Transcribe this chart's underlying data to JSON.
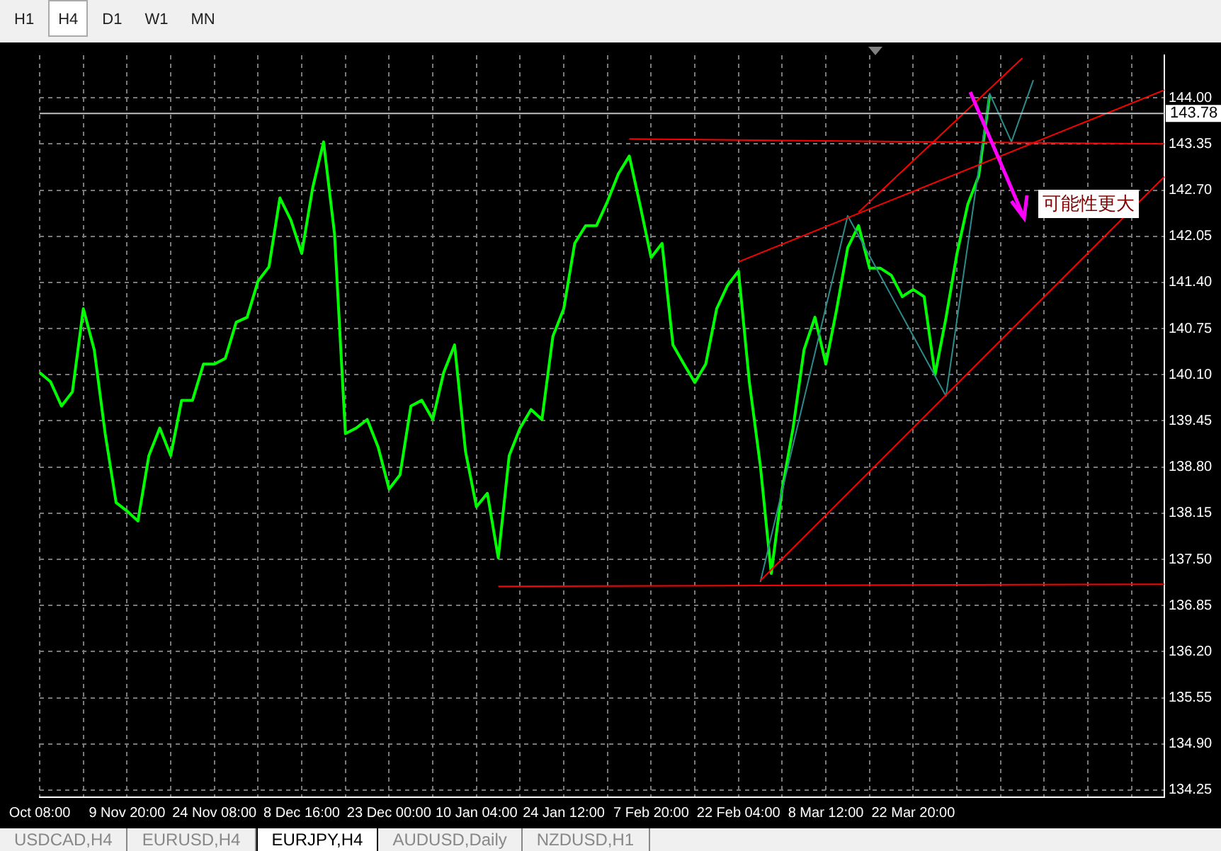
{
  "chart_data": {
    "type": "line",
    "categories": [
      "Oct 08:00",
      null,
      null,
      null,
      null,
      null,
      null,
      null,
      "9 Nov 20:00",
      null,
      null,
      null,
      null,
      null,
      null,
      null,
      "24 Nov 08:00",
      null,
      null,
      null,
      null,
      null,
      null,
      null,
      "8 Dec 16:00",
      null,
      null,
      null,
      null,
      null,
      null,
      null,
      "23 Dec 00:00",
      null,
      null,
      null,
      null,
      null,
      null,
      null,
      "10 Jan 04:00",
      null,
      null,
      null,
      null,
      null,
      null,
      null,
      "24 Jan 12:00",
      null,
      null,
      null,
      null,
      null,
      null,
      null,
      "7 Feb 20:00",
      null,
      null,
      null,
      null,
      null,
      null,
      null,
      "22 Feb 04:00",
      null,
      null,
      null,
      null,
      null,
      null,
      null,
      "8 Mar 12:00",
      null,
      null,
      null,
      null,
      null,
      null,
      null,
      "22 Mar 20:00",
      null,
      null,
      null,
      null,
      null,
      null,
      null,
      null,
      null,
      null,
      null,
      null,
      null,
      null,
      null,
      null,
      null,
      null,
      null,
      null,
      null,
      null,
      null
    ],
    "series": [
      {
        "color": "#00ff00",
        "values": [
          140.13,
          140.0,
          139.66,
          139.86,
          141.03,
          140.45,
          139.27,
          138.3,
          138.18,
          138.04,
          138.96,
          139.35,
          138.96,
          139.74,
          139.74,
          140.25,
          140.25,
          140.33,
          140.84,
          140.91,
          141.42,
          141.62,
          142.59,
          142.28,
          141.81,
          142.73,
          143.38,
          142.09,
          139.27,
          139.35,
          139.47,
          139.08,
          138.49,
          138.69,
          139.66,
          139.74,
          139.47,
          140.13,
          140.52,
          139.02,
          138.24,
          138.43,
          137.52,
          138.96,
          139.35,
          139.61,
          139.47,
          140.64,
          141.03,
          141.95,
          142.2,
          142.2,
          142.54,
          142.93,
          143.18,
          142.48,
          141.75,
          141.95,
          140.52,
          140.25,
          139.99,
          140.25,
          141.03,
          141.36,
          141.56,
          139.99,
          138.82,
          137.3,
          138.49,
          139.35,
          140.45,
          140.91,
          140.25,
          141.03,
          141.89,
          142.2,
          141.6,
          141.6,
          141.5,
          141.2,
          141.3,
          141.2,
          140.1,
          140.9,
          141.8,
          142.5,
          142.9,
          144.04,
          null,
          null,
          null,
          null,
          null,
          null,
          null,
          null,
          null,
          null,
          null,
          null,
          null,
          null,
          null,
          null
        ]
      },
      {
        "color": "#ff0000",
        "values": [
          null,
          null,
          null,
          null,
          null,
          null,
          null,
          null,
          null,
          null,
          null,
          null,
          null,
          null,
          null,
          null,
          null,
          null,
          null,
          null,
          null,
          null,
          null,
          null,
          null,
          null,
          null,
          null,
          null,
          null,
          null,
          null,
          null,
          null,
          null,
          null,
          null,
          null,
          null,
          null,
          null,
          null,
          null,
          null,
          null,
          null,
          null,
          null,
          null,
          null,
          null,
          null,
          null,
          null,
          143.42,
          null,
          null,
          null,
          null,
          null,
          null,
          null,
          null,
          null,
          null,
          null,
          null,
          null,
          null,
          null,
          null,
          null,
          null,
          null,
          null,
          null,
          null,
          null,
          null,
          null,
          null,
          null,
          null,
          null,
          null,
          null,
          null,
          null,
          null,
          null,
          null,
          null,
          null,
          null,
          null,
          null,
          null,
          null,
          null,
          null,
          null,
          null,
          null,
          143.35
        ]
      },
      {
        "color": "#ff0000",
        "values": [
          null,
          null,
          null,
          null,
          null,
          null,
          null,
          null,
          null,
          null,
          null,
          null,
          null,
          null,
          null,
          null,
          null,
          null,
          null,
          null,
          null,
          null,
          null,
          null,
          null,
          null,
          null,
          null,
          null,
          null,
          null,
          null,
          null,
          null,
          null,
          null,
          null,
          null,
          null,
          null,
          null,
          null,
          137.12,
          null,
          null,
          null,
          null,
          null,
          null,
          null,
          null,
          null,
          null,
          null,
          null,
          null,
          null,
          null,
          null,
          null,
          null,
          null,
          null,
          null,
          null,
          null,
          null,
          null,
          null,
          null,
          null,
          null,
          null,
          null,
          null,
          null,
          null,
          null,
          null,
          null,
          null,
          null,
          null,
          null,
          null,
          null,
          null,
          null,
          null,
          null,
          null,
          null,
          null,
          null,
          null,
          null,
          null,
          null,
          null,
          null,
          null,
          null,
          null,
          137.15
        ]
      },
      {
        "color": "#ff0000",
        "values": [
          null,
          null,
          null,
          null,
          null,
          null,
          null,
          null,
          null,
          null,
          null,
          null,
          null,
          null,
          null,
          null,
          null,
          null,
          null,
          null,
          null,
          null,
          null,
          null,
          null,
          null,
          null,
          null,
          null,
          null,
          null,
          null,
          null,
          null,
          null,
          null,
          null,
          null,
          null,
          null,
          null,
          null,
          null,
          null,
          null,
          null,
          null,
          null,
          null,
          null,
          null,
          null,
          null,
          null,
          null,
          null,
          null,
          null,
          null,
          null,
          null,
          null,
          null,
          null,
          null,
          null,
          137.2,
          null,
          null,
          null,
          null,
          null,
          null,
          null,
          null,
          null,
          null,
          null,
          null,
          null,
          null,
          null,
          null,
          null,
          null,
          null,
          null,
          null,
          null,
          null,
          null,
          null,
          null,
          null,
          null,
          null,
          null,
          null,
          null,
          null,
          null,
          null,
          null,
          142.89
        ]
      },
      {
        "color": "#ff0000",
        "values": [
          null,
          null,
          null,
          null,
          null,
          null,
          null,
          null,
          null,
          null,
          null,
          null,
          null,
          null,
          null,
          null,
          null,
          null,
          null,
          null,
          null,
          null,
          null,
          null,
          null,
          null,
          null,
          null,
          null,
          null,
          null,
          null,
          null,
          null,
          null,
          null,
          null,
          null,
          null,
          null,
          null,
          null,
          null,
          null,
          null,
          null,
          null,
          null,
          null,
          null,
          null,
          null,
          null,
          null,
          null,
          null,
          null,
          null,
          null,
          null,
          null,
          null,
          null,
          null,
          141.69,
          null,
          null,
          null,
          null,
          null,
          null,
          null,
          null,
          null,
          null,
          null,
          null,
          null,
          null,
          null,
          null,
          null,
          null,
          null,
          null,
          null,
          null,
          null,
          null,
          null,
          null,
          null,
          null,
          null,
          null,
          null,
          null,
          null,
          null,
          null,
          null,
          null,
          null,
          144.11
        ]
      },
      {
        "color": "#ff0000",
        "values": [
          null,
          null,
          null,
          null,
          null,
          null,
          null,
          null,
          null,
          null,
          null,
          null,
          null,
          null,
          null,
          null,
          null,
          null,
          null,
          null,
          null,
          null,
          null,
          null,
          null,
          null,
          null,
          null,
          null,
          null,
          null,
          null,
          null,
          null,
          null,
          null,
          null,
          null,
          null,
          null,
          null,
          null,
          null,
          null,
          null,
          null,
          null,
          null,
          null,
          null,
          null,
          null,
          null,
          null,
          null,
          null,
          null,
          null,
          null,
          null,
          null,
          null,
          null,
          null,
          null,
          null,
          null,
          null,
          null,
          null,
          null,
          null,
          null,
          null,
          null,
          142.39,
          null,
          null,
          null,
          null,
          null,
          null,
          null,
          null,
          null,
          null,
          null,
          null,
          null,
          null,
          144.56,
          null,
          null,
          null,
          null,
          null,
          null,
          null,
          null,
          null,
          null,
          null,
          null,
          null
        ]
      },
      {
        "color": "#2e8b8b",
        "values": [
          null,
          null,
          null,
          null,
          null,
          null,
          null,
          null,
          null,
          null,
          null,
          null,
          null,
          null,
          null,
          null,
          null,
          null,
          null,
          null,
          null,
          null,
          null,
          null,
          null,
          null,
          null,
          null,
          null,
          null,
          null,
          null,
          null,
          null,
          null,
          null,
          null,
          null,
          null,
          null,
          null,
          null,
          null,
          null,
          null,
          null,
          null,
          null,
          null,
          null,
          null,
          null,
          null,
          null,
          null,
          null,
          null,
          null,
          null,
          null,
          null,
          null,
          null,
          null,
          null,
          null,
          137.18,
          null,
          null,
          null,
          null,
          null,
          null,
          null,
          142.34,
          null,
          null,
          null,
          null,
          null,
          null,
          null,
          null,
          139.8,
          null,
          null,
          null,
          144.06,
          null,
          143.38,
          null,
          144.25,
          null,
          null,
          null,
          null,
          null,
          null,
          null,
          null,
          null,
          null,
          null,
          null
        ]
      }
    ],
    "ylim": [
      134.15,
      144.6
    ],
    "yticks": [
      {
        "value": 144,
        "label": "144.00"
      },
      {
        "value": 143.35,
        "label": "143.35"
      },
      {
        "value": 142.7,
        "label": "142.70"
      },
      {
        "value": 142.05,
        "label": "142.05"
      },
      {
        "value": 141.4,
        "label": "141.40"
      },
      {
        "value": 140.75,
        "label": "140.75"
      },
      {
        "value": 140.1,
        "label": "140.10"
      },
      {
        "value": 139.45,
        "label": "139.45"
      },
      {
        "value": 138.8,
        "label": "138.80"
      },
      {
        "value": 138.15,
        "label": "138.15"
      },
      {
        "value": 137.5,
        "label": "137.50"
      },
      {
        "value": 136.85,
        "label": "136.85"
      },
      {
        "value": 136.2,
        "label": "136.20"
      },
      {
        "value": 135.55,
        "label": "135.55"
      },
      {
        "value": 134.9,
        "label": "134.90"
      },
      {
        "value": 134.25,
        "label": "134.25"
      }
    ],
    "ref_lines": [
      {
        "axis": "y",
        "value": 143.78,
        "label": "143.78",
        "color": "#c0c0c0"
      }
    ],
    "annotations": [
      "可能性更大",
      "H1",
      "H4",
      "D1",
      "W1",
      "MN",
      "USDCAD,H4",
      "EURUSD,H4",
      "EURJPY,H4",
      "AUDUSD,Daily",
      "NZDUSD,H1"
    ],
    "grid": true,
    "legend": false,
    "marker": "none",
    "line_style": "solid"
  }
}
